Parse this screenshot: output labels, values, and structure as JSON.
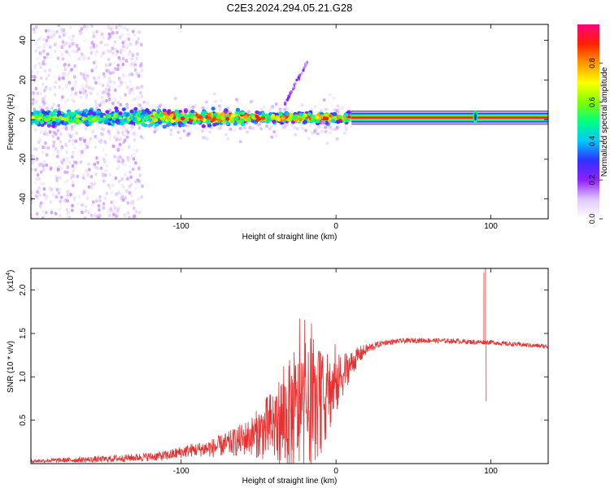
{
  "title": "C2E3.2024.294.05.21.G28",
  "chart_data": [
    {
      "type": "heatmap",
      "xlabel": "Height of straight line (km)",
      "ylabel": "Frequency (Hz)",
      "xlim": [
        -197,
        137
      ],
      "ylim": [
        -50,
        48
      ],
      "x_ticks": [
        -100,
        0,
        100
      ],
      "y_ticks": [
        -40,
        -20,
        0,
        20,
        40
      ],
      "grid": false,
      "colorbar": {
        "label": "Normalized spectral amplitude",
        "range": [
          0,
          1
        ],
        "ticks": [
          0.0,
          0.2,
          0.4,
          0.6,
          0.8
        ],
        "tick_labels": [
          "0.0",
          "0.2",
          "0.4",
          "0.6",
          "0.8"
        ],
        "colors": [
          "#ffffff",
          "#e0c8ff",
          "#9020ff",
          "#3030ff",
          "#00c8ff",
          "#00ff80",
          "#80ff00",
          "#ffff00",
          "#ff9900",
          "#ff2000",
          "#ff0080"
        ]
      },
      "features": {
        "steady_tone": {
          "x_range": [
            10,
            137
          ],
          "frequency": 1,
          "amplitude": 1.0
        },
        "noisy_band": {
          "x_range": [
            -197,
            10
          ],
          "frequency_range": [
            -8,
            8
          ]
        },
        "scattered_noise": {
          "x_range": [
            -197,
            -125
          ],
          "frequency_range": [
            -50,
            48
          ]
        },
        "rising_branch": {
          "x": [
            -33,
            -18
          ],
          "frequency": [
            8,
            30
          ]
        },
        "spike": {
          "x": 90,
          "frequency_range": [
            -3,
            6
          ]
        }
      }
    },
    {
      "type": "line",
      "xlabel": "Height of straight line (km)",
      "ylabel": "SNR (10 * v/v)",
      "y_multiplier_label": "(x10",
      "y_multiplier_exponent": "4",
      "y_multiplier_close": ")",
      "xlim": [
        -197,
        137
      ],
      "ylim": [
        0,
        22500
      ],
      "x_ticks": [
        -100,
        0,
        100
      ],
      "y_ticks": [
        5000,
        10000,
        15000,
        20000
      ],
      "y_tick_labels": [
        "0.5",
        "1.0",
        "1.5",
        "2.0"
      ],
      "grid": false,
      "series": [
        {
          "color": "#e83030",
          "trend": {
            "x": [
              -197,
              -150,
              -110,
              -95,
              -80,
              -65,
              -50,
              -40,
              -30,
              -20,
              -10,
              -5,
              0,
              5,
              10,
              15,
              20,
              30,
              40,
              50,
              60,
              70,
              80,
              90,
              94,
              100,
              110,
              120,
              137
            ],
            "y": [
              300,
              500,
              900,
              1500,
              1800,
              2500,
              3500,
              4500,
              5500,
              6000,
              7000,
              8000,
              9000,
              10500,
              11500,
              12500,
              13200,
              13900,
              14100,
              14200,
              14200,
              14150,
              14100,
              14000,
              14000,
              14000,
              13800,
              13700,
              13500
            ]
          },
          "noise_amplitude": {
            "x": [
              -197,
              -120,
              -90,
              -70,
              -55,
              -40,
              -30,
              -20,
              -10,
              0,
              10,
              20,
              30,
              137
            ],
            "amp": [
              200,
              500,
              800,
              1400,
              2200,
              4500,
              6500,
              7000,
              6000,
              3500,
              1500,
              600,
              300,
              250
            ]
          },
          "spikes": [
            {
              "x": 95.5,
              "y": 22000
            },
            {
              "x": 96.5,
              "y": 22500
            },
            {
              "x": 97,
              "y": 7200
            }
          ]
        }
      ]
    }
  ]
}
